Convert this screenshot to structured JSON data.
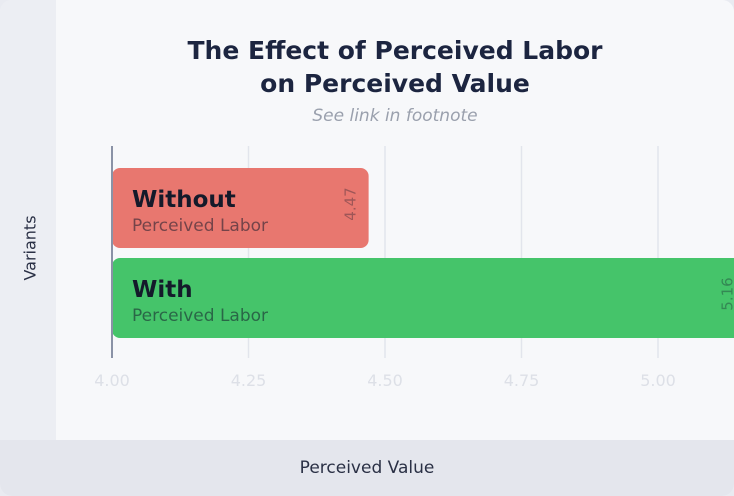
{
  "chart_data": {
    "type": "bar",
    "orientation": "horizontal",
    "title": "The Effect of Perceived Labor on Perceived Value",
    "title_lines": [
      "The Effect of Perceived Labor",
      "on Perceived Value"
    ],
    "subtitle": "See link in footnote",
    "xlabel": "Perceived Value",
    "ylabel": "Variants",
    "xlim": [
      4.0,
      5.0
    ],
    "xticks": [
      "4.00",
      "4.25",
      "4.50",
      "4.75",
      "5.00"
    ],
    "grid": true,
    "categories": [
      {
        "name": "Without",
        "sub": "Perceived Labor"
      },
      {
        "name": "With",
        "sub": "Perceived Labor"
      }
    ],
    "values": [
      4.47,
      5.16
    ],
    "value_labels": [
      "4.47",
      "5.16"
    ],
    "colors": [
      "#e8776f",
      "#45c46a"
    ]
  }
}
